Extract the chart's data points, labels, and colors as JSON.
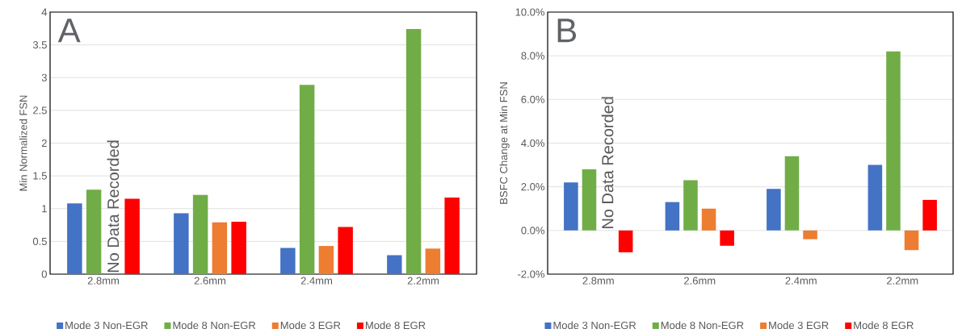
{
  "chart_data": [
    {
      "type": "bar",
      "ylabel": "Min Normalized FSN",
      "categories": [
        "2.8mm",
        "2.6mm",
        "2.4mm",
        "2.2mm"
      ],
      "series": [
        {
          "name": "Mode 3 Non-EGR",
          "color": "#4472c4",
          "values": [
            1.08,
            0.93,
            0.4,
            0.29
          ]
        },
        {
          "name": "Mode 8 Non-EGR",
          "color": "#70ad47",
          "values": [
            1.29,
            1.21,
            2.89,
            3.74
          ]
        },
        {
          "name": "Mode 3 EGR",
          "color": "#ed7d31",
          "values": [
            null,
            0.79,
            0.43,
            0.39
          ]
        },
        {
          "name": "Mode 8 EGR",
          "color": "#ff0000",
          "values": [
            1.15,
            0.8,
            0.72,
            1.17
          ]
        }
      ],
      "ylim": [
        0,
        4
      ],
      "yticks": [
        0,
        0.5,
        1,
        1.5,
        2,
        2.5,
        3,
        3.5,
        4
      ],
      "grid": "y",
      "legend": "bottom",
      "annotations": [
        "A",
        "No Data Recorded"
      ]
    },
    {
      "type": "bar",
      "ylabel": "BSFC Change at Min FSN",
      "categories": [
        "2.8mm",
        "2.6mm",
        "2.4mm",
        "2.2mm"
      ],
      "series": [
        {
          "name": "Mode 3 Non-EGR",
          "color": "#4472c4",
          "values": [
            2.2,
            1.3,
            1.9,
            3.0
          ]
        },
        {
          "name": "Mode 8 Non-EGR",
          "color": "#70ad47",
          "values": [
            2.8,
            2.3,
            3.4,
            8.2
          ]
        },
        {
          "name": "Mode 3 EGR",
          "color": "#ed7d31",
          "values": [
            null,
            1.0,
            -0.4,
            -0.9
          ]
        },
        {
          "name": "Mode 8 EGR",
          "color": "#ff0000",
          "values": [
            -1.0,
            -0.7,
            null,
            1.4
          ]
        }
      ],
      "ylim": [
        -2,
        10
      ],
      "yticks": [
        {
          "value": -2,
          "label": "-2.0%"
        },
        {
          "value": 0,
          "label": "0.0%"
        },
        {
          "value": 2,
          "label": "2.0%"
        },
        {
          "value": 4,
          "label": "4.0%"
        },
        {
          "value": 6,
          "label": "6.0%"
        },
        {
          "value": 8,
          "label": "8.0%"
        },
        {
          "value": 10,
          "label": "10.0%"
        }
      ],
      "grid": "y",
      "legend": "bottom",
      "annotations": [
        "B",
        "No Data Recorded"
      ]
    }
  ]
}
